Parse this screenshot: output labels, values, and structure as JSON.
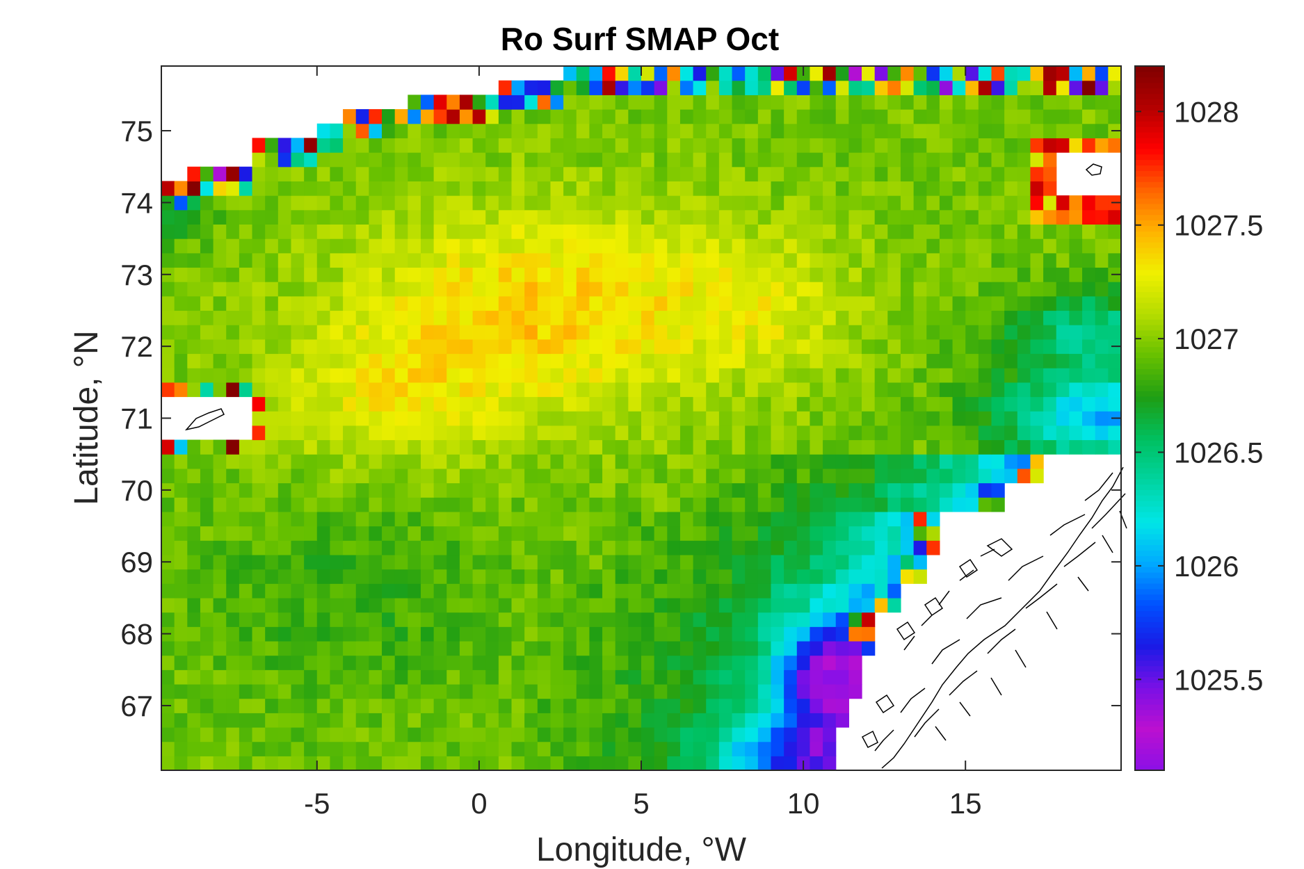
{
  "chart_data": {
    "type": "heatmap",
    "title": "Ro Surf SMAP Oct",
    "xlabel": "Longitude, °W",
    "ylabel": "Latitude, °N",
    "xlim": [
      -9.8,
      19.8
    ],
    "ylim": [
      66.1,
      75.9
    ],
    "xticks": [
      -5,
      0,
      5,
      10,
      15
    ],
    "xticklabels": [
      "-5",
      "0",
      "5",
      "10",
      "15"
    ],
    "yticks": [
      67,
      68,
      69,
      70,
      71,
      72,
      73,
      74,
      75
    ],
    "yticklabels": [
      "67",
      "68",
      "69",
      "70",
      "71",
      "72",
      "73",
      "74",
      "75"
    ],
    "colorbar": {
      "range": [
        1025.1,
        1028.2
      ],
      "ticks": [
        1025.5,
        1026,
        1026.5,
        1027,
        1027.5,
        1028
      ],
      "ticklabels": [
        "1025.5",
        "1026",
        "1026.5",
        "1027",
        "1027.5",
        "1028"
      ],
      "colormap": [
        "#8b10e6",
        "#bb10d0",
        "#7a10e6",
        "#1a1ae6",
        "#0050ff",
        "#00aaff",
        "#00e6e6",
        "#00d4a0",
        "#00c060",
        "#1e9e14",
        "#66c000",
        "#b4dc00",
        "#f0f000",
        "#ffb400",
        "#ff6400",
        "#ff0000",
        "#b40000",
        "#800000"
      ]
    },
    "grid": false,
    "field_summary": {
      "background_mean": 1027.0,
      "central_high": {
        "lon": 2,
        "lat": 72.4,
        "value": 1027.4
      },
      "coastal_low": {
        "lon": 10.5,
        "lat": 67.5,
        "value": 1025.5
      },
      "edge_extremes_near_ice": 1028.0
    }
  }
}
